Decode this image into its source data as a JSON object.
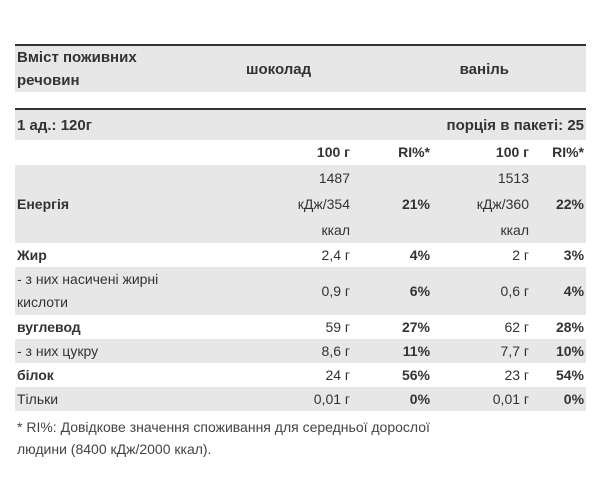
{
  "header": {
    "nutrients_label": "Вміст поживних речовин",
    "variant_1": "шоколад",
    "variant_2": "ваніль"
  },
  "serving": {
    "unit_label": "1 ад.: 120г",
    "per_pack_label": "порція в пакеті: 25"
  },
  "columns": {
    "v1_per100": "100 г",
    "v1_ri": "RI%*",
    "v2_per100": "100 г",
    "v2_ri": "RI%*"
  },
  "rows": [
    {
      "label": "Енергія",
      "v1": "1487 кДж/354 ккал",
      "v1_lines": [
        "1487",
        "кДж/354",
        "ккал"
      ],
      "r1": "21%",
      "v2": "1513 кДж/360 ккал",
      "v2_lines": [
        "1513",
        "кДж/360",
        "ккал"
      ],
      "r2": "22%"
    },
    {
      "label": "Жир",
      "v1": "2,4 г",
      "r1": "4%",
      "v2": "2 г",
      "r2": "3%"
    },
    {
      "label": "- з них насичені жирні кислоти",
      "label_lines": [
        "- з них насичені жирні",
        "кислоти"
      ],
      "v1": "0,9 г",
      "r1": "6%",
      "v2": "0,6 г",
      "r2": "4%"
    },
    {
      "label": "вуглевод",
      "v1": "59 г",
      "r1": "27%",
      "v2": "62 г",
      "r2": "28%"
    },
    {
      "label": "- з них цукру",
      "v1": "8,6 г",
      "r1": "11%",
      "v2": "7,7 г",
      "r2": "10%"
    },
    {
      "label": "білок",
      "v1": "24 г",
      "r1": "56%",
      "v2": "23 г",
      "r2": "54%"
    },
    {
      "label": "Тільки",
      "v1": "0,01 г",
      "r1": "0%",
      "v2": "0,01 г",
      "r2": "0%"
    }
  ],
  "footnote": {
    "line1": "* RI%: Довідкове значення споживання для середньої дорослої",
    "line2": "людини (8400 кДж/2000 ккал)."
  },
  "colors": {
    "shade": "#e7e7e7",
    "text": "#333333"
  }
}
